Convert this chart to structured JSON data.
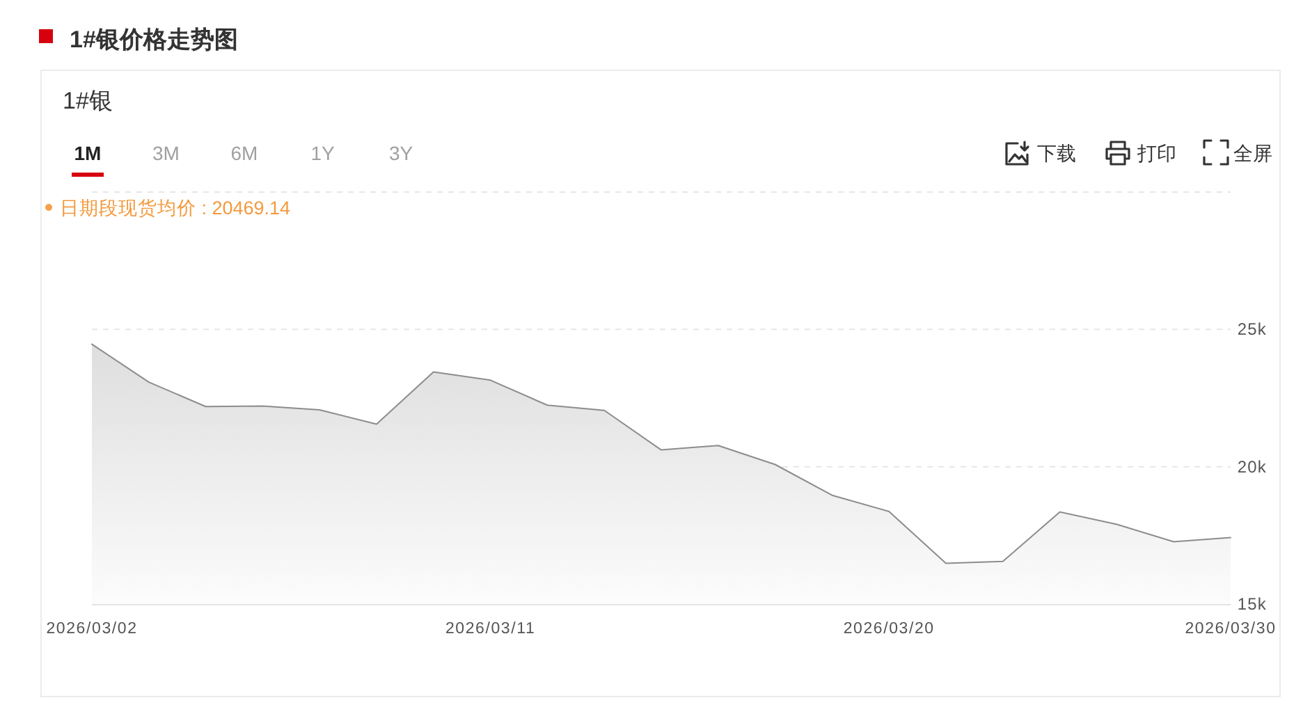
{
  "chart_data": {
    "type": "area",
    "title": "1#银价格走势图",
    "subtitle": "1#银",
    "categories": [
      "2026/03/02",
      null,
      null,
      null,
      null,
      null,
      null,
      "2026/03/11",
      null,
      null,
      null,
      null,
      null,
      null,
      "2026/03/20",
      null,
      null,
      null,
      null,
      null,
      "2026/03/30"
    ],
    "values": [
      24460,
      23080,
      22190,
      22210,
      22070,
      21550,
      23450,
      23150,
      22240,
      22050,
      20610,
      20770,
      20080,
      18960,
      18370,
      16480,
      16550,
      18350,
      17900,
      17270,
      17420
    ],
    "color": "#8c8c8c",
    "ylim": [
      15000,
      30000
    ],
    "yticks": [
      {
        "value": 15000,
        "label": "15k"
      },
      {
        "value": 20000,
        "label": "20k"
      },
      {
        "value": 25000,
        "label": "25k"
      },
      {
        "value": 30000,
        "label": null
      }
    ],
    "grid": "y",
    "annotations": [
      "1M",
      "3M",
      "6M",
      "1Y",
      "3Y",
      "下载",
      "打印",
      "全屏",
      "日期段现货均价 : 20469.14"
    ]
  }
}
